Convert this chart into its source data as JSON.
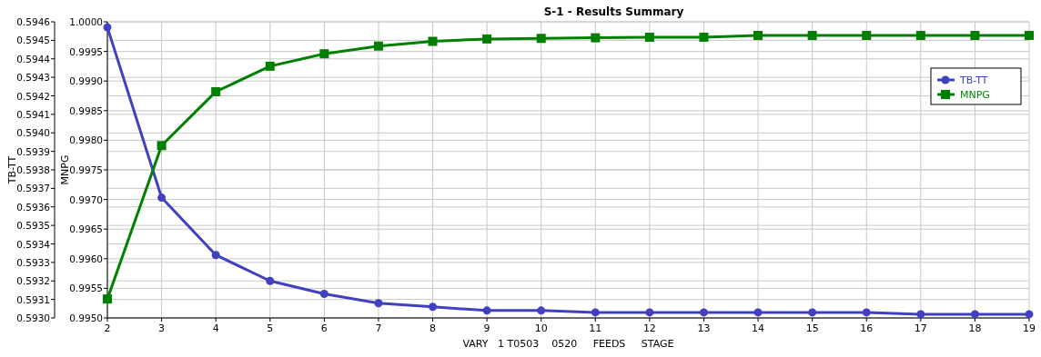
{
  "chart_data": {
    "type": "line",
    "title": "S-1 - Results Summary",
    "xlabel": "VARY   1 T0503    0520     FEEDS     STAGE",
    "ylabel": "TB-TT",
    "y2label": "MNPG",
    "x": [
      2,
      3,
      4,
      5,
      6,
      7,
      8,
      9,
      10,
      11,
      12,
      13,
      14,
      15,
      16,
      17,
      18,
      19
    ],
    "series": [
      {
        "name": "TB-TT",
        "color": "#4040c0",
        "marker": "circle",
        "values": [
          0.59457,
          0.59365,
          0.59334,
          0.5932,
          0.59313,
          0.59308,
          0.59306,
          0.59304,
          0.59304,
          0.59303,
          0.59303,
          0.59303,
          0.59303,
          0.59303,
          0.59303,
          0.59302,
          0.59302,
          0.59302
        ]
      },
      {
        "name": "MNPG",
        "color": "#008000",
        "marker": "square",
        "axis": "y2",
        "values": [
          0.99532,
          0.99791,
          0.99882,
          0.99925,
          0.99946,
          0.99959,
          0.99967,
          0.99971,
          0.99972,
          0.99973,
          0.99974,
          0.99974,
          0.99977,
          0.99977,
          0.99977,
          0.99977,
          0.99977,
          0.99977
        ]
      }
    ],
    "xlim": [
      2,
      19
    ],
    "xticks": [
      2,
      3,
      4,
      5,
      6,
      7,
      8,
      9,
      10,
      11,
      12,
      13,
      14,
      15,
      16,
      17,
      18,
      19
    ],
    "ylim": [
      0.593,
      0.5946
    ],
    "yticks": [
      {
        "value": 0.593,
        "label": "0.5930"
      },
      {
        "value": 0.5931,
        "label": "0.5931"
      },
      {
        "value": 0.5932,
        "label": "0.5932"
      },
      {
        "value": 0.5933,
        "label": "0.5933"
      },
      {
        "value": 0.5934,
        "label": "0.5934"
      },
      {
        "value": 0.5935,
        "label": "0.5935"
      },
      {
        "value": 0.5936,
        "label": "0.5936"
      },
      {
        "value": 0.5937,
        "label": "0.5937"
      },
      {
        "value": 0.5938,
        "label": "0.5938"
      },
      {
        "value": 0.5939,
        "label": "0.5939"
      },
      {
        "value": 0.594,
        "label": "0.5940"
      },
      {
        "value": 0.5941,
        "label": "0.5941"
      },
      {
        "value": 0.5942,
        "label": "0.5942"
      },
      {
        "value": 0.5943,
        "label": "0.5943"
      },
      {
        "value": 0.5944,
        "label": "0.5944"
      },
      {
        "value": 0.5945,
        "label": "0.5945"
      },
      {
        "value": 0.5946,
        "label": "0.5946"
      }
    ],
    "y2lim": [
      0.995,
      1.0
    ],
    "y2ticks": [
      {
        "value": 0.995,
        "label": "0.9950"
      },
      {
        "value": 0.9955,
        "label": "0.9955"
      },
      {
        "value": 0.996,
        "label": "0.9960"
      },
      {
        "value": 0.9965,
        "label": "0.9965"
      },
      {
        "value": 0.997,
        "label": "0.9970"
      },
      {
        "value": 0.9975,
        "label": "0.9975"
      },
      {
        "value": 0.998,
        "label": "0.9980"
      },
      {
        "value": 0.9985,
        "label": "0.9985"
      },
      {
        "value": 0.999,
        "label": "0.9990"
      },
      {
        "value": 0.9995,
        "label": "0.9995"
      },
      {
        "value": 1.0,
        "label": "1.0000"
      }
    ],
    "grid": true,
    "legend": "top right",
    "line_style": "solid"
  }
}
